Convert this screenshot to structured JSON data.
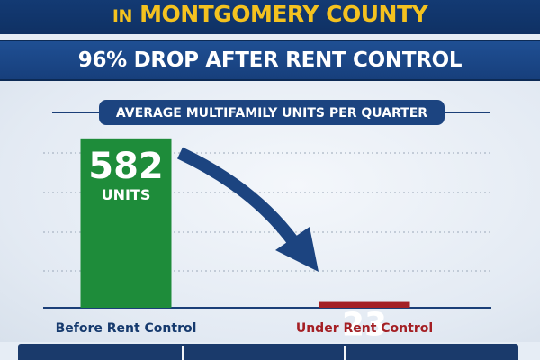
{
  "header": {
    "prefix": "IN",
    "title": "MONTGOMERY COUNTY"
  },
  "banner": {
    "text": "96% DROP AFTER RENT CONTROL"
  },
  "chart_data": {
    "type": "bar",
    "title": "AVERAGE MULTIFAMILY UNITS PER QUARTER",
    "categories": [
      "Before Rent Control",
      "Under Rent Control"
    ],
    "values": [
      582,
      23
    ],
    "value_unit": "UNITS",
    "colors": [
      "#1e8c3a",
      "#a41f24"
    ],
    "category_label_colors": [
      "#163a6e",
      "#a41f24"
    ],
    "ylim": [
      0,
      600
    ],
    "grid": true,
    "annotation": "arrow from first bar to second bar"
  },
  "colors": {
    "navy": "#133a73",
    "gold": "#f4c21f",
    "arrow": "#1c4480"
  }
}
